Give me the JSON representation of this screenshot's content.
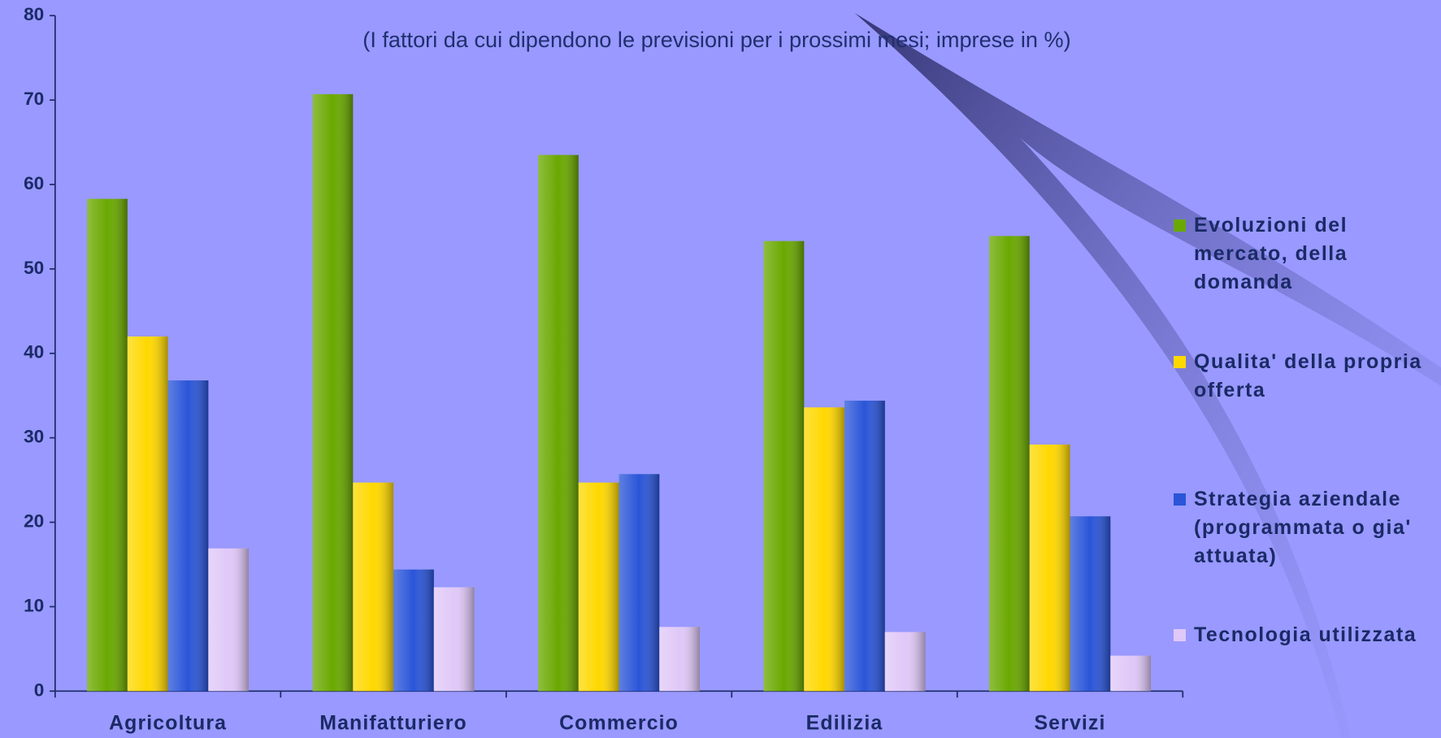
{
  "chart_data": {
    "type": "bar",
    "title": "(I fattori da cui dipendono le previsioni per i prossimi mesi; imprese in %)",
    "categories": [
      "Agricoltura",
      "Manifatturiero",
      "Commercio",
      "Edilizia",
      "Servizi"
    ],
    "series": [
      {
        "name": "Evoluzioni del mercato, della domanda",
        "color": "#6aa800",
        "values": [
          58.3,
          70.7,
          63.5,
          53.3,
          53.9
        ]
      },
      {
        "name": "Qualita' della propria offerta",
        "color": "#ffd800",
        "values": [
          42.0,
          24.7,
          24.7,
          33.6,
          29.2
        ]
      },
      {
        "name": "Strategia aziendale (programmata o gia' attuata)",
        "color": "#2a55d8",
        "values": [
          36.8,
          14.4,
          25.7,
          34.4,
          20.7
        ]
      },
      {
        "name": "Tecnologia utilizzata",
        "color": "#e0c8f8",
        "values": [
          16.9,
          12.3,
          7.6,
          7.0,
          4.2
        ]
      }
    ],
    "ylim": [
      0,
      80
    ],
    "yticks": [
      0,
      10,
      20,
      30,
      40,
      50,
      60,
      70,
      80
    ],
    "grid": false,
    "legend": "right"
  }
}
